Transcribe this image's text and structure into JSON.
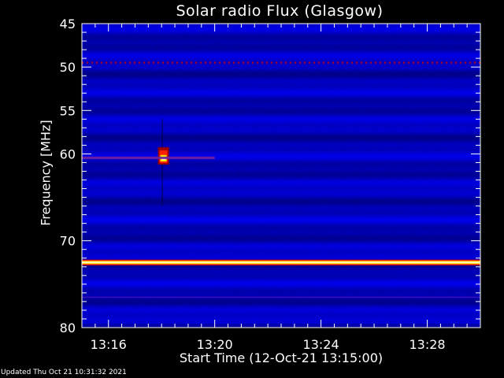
{
  "chart_data": {
    "type": "heatmap",
    "title": "Solar radio Flux (Glasgow)",
    "xlabel": "Start Time (12-Oct-21 13:15:00)",
    "ylabel": "Frequency [MHz]",
    "x_range": [
      "13:15",
      "13:30"
    ],
    "ylim": [
      80,
      45
    ],
    "y_ticks": [
      45,
      50,
      55,
      60,
      70,
      80
    ],
    "x_ticks": [
      "13:16",
      "13:20",
      "13:24",
      "13:28"
    ],
    "colormap": [
      "#000080",
      "#0000ff",
      "#800000",
      "#ff0000",
      "#ffff00",
      "#ffffff"
    ],
    "features": [
      {
        "kind": "continuous band",
        "frequency_mhz": 72.5,
        "intensity": "saturated"
      },
      {
        "kind": "dotted interference",
        "frequency_mhz": 49.5
      },
      {
        "kind": "burst",
        "time": "13:18",
        "frequency_mhz": 60.5
      },
      {
        "kind": "weak band",
        "frequency_mhz": 60.5,
        "time_range": [
          "13:15",
          "13:20"
        ]
      },
      {
        "kind": "weak band",
        "frequency_mhz": 76.5
      }
    ]
  },
  "footer": {
    "updated": "Updated Thu Oct 21 10:31:32 2021"
  }
}
